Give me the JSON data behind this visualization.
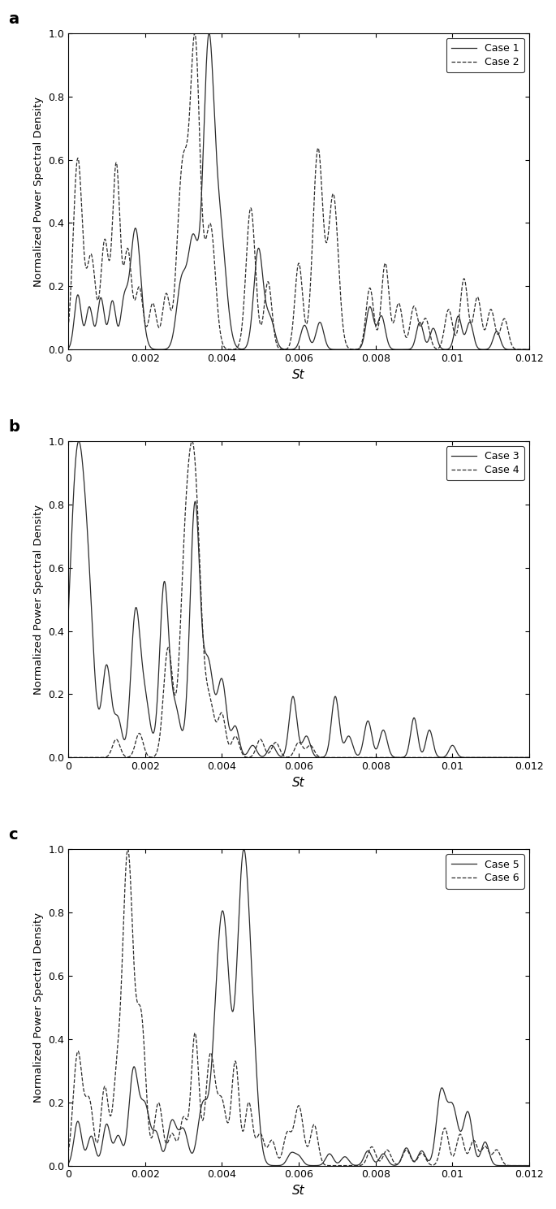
{
  "panels": [
    {
      "label": "a",
      "legend": [
        "Case 1",
        "Case 2"
      ],
      "line_styles": [
        "-",
        "--"
      ],
      "colors": [
        "#2b2b2b",
        "#2b2b2b"
      ]
    },
    {
      "label": "b",
      "legend": [
        "Case 3",
        "Case 4"
      ],
      "line_styles": [
        "-",
        "--"
      ],
      "colors": [
        "#2b2b2b",
        "#2b2b2b"
      ]
    },
    {
      "label": "c",
      "legend": [
        "Case 5",
        "Case 6"
      ],
      "line_styles": [
        "-",
        "--"
      ],
      "colors": [
        "#2b2b2b",
        "#2b2b2b"
      ]
    }
  ],
  "xlabel": "St",
  "ylabel": "Normalized Power Spectral Density",
  "xlim": [
    0,
    0.012
  ],
  "ylim": [
    0,
    1
  ],
  "xticks": [
    0,
    0.002,
    0.004,
    0.006,
    0.008,
    0.01,
    0.012
  ],
  "yticks": [
    0,
    0.2,
    0.4,
    0.6,
    0.8,
    1
  ],
  "figsize": [
    6.85,
    14.88
  ],
  "dpi": 100
}
